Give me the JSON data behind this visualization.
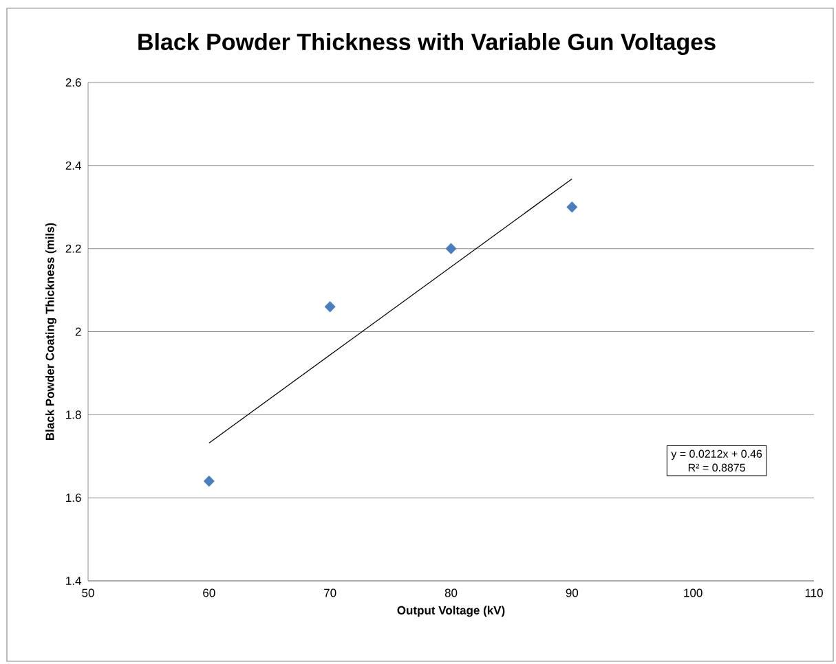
{
  "chart_data": {
    "type": "scatter",
    "title": "Black Powder Thickness with Variable Gun Voltages",
    "xlabel": "Output Voltage (kV)",
    "ylabel": "Black Powder Coating Thickness (mils)",
    "series": [
      {
        "x": [
          60,
          70,
          80,
          90
        ],
        "values": [
          1.64,
          2.06,
          2.2,
          2.3
        ],
        "color": "#4a7ebb",
        "marker": "diamond"
      },
      {
        "type": "line",
        "x": [
          60,
          90
        ],
        "values": [
          1.732,
          2.368
        ],
        "color": "#000000",
        "marker": "none",
        "line_style": "solid"
      }
    ],
    "xlim": [
      50,
      110
    ],
    "xticks": [
      50,
      60,
      70,
      80,
      90,
      100,
      110
    ],
    "ylim": [
      1.4,
      2.6
    ],
    "yticks": [
      {
        "value": 1.4,
        "label": "1.4"
      },
      {
        "value": 1.6,
        "label": "1.6"
      },
      {
        "value": 1.8,
        "label": "1.8"
      },
      {
        "value": 2,
        "label": "2"
      },
      {
        "value": 2.2,
        "label": "2.2"
      },
      {
        "value": 2.4,
        "label": "2.4"
      },
      {
        "value": 2.6,
        "label": "2.6"
      }
    ],
    "grid": "y",
    "annotations": [
      "y = 0.0212x + 0.46",
      "R² = 0.8875"
    ]
  }
}
